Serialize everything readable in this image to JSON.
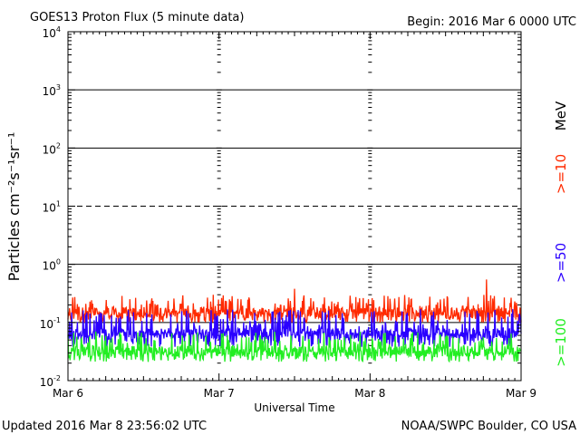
{
  "header": {
    "title": "GOES13 Proton Flux (5 minute data)",
    "begin": "Begin: 2016 Mar 6 0000 UTC"
  },
  "footer": {
    "updated": "Updated 2016 Mar  8 23:56:02 UTC",
    "source": "NOAA/SWPC Boulder, CO USA"
  },
  "chart_data": {
    "type": "line",
    "title": "GOES13 Proton Flux (5 minute data)",
    "xlabel": "Universal Time",
    "ylabel": "Particles cm⁻²s⁻¹sr⁻¹",
    "y_scale": "log",
    "ylim": [
      0.01,
      10000
    ],
    "y_ticks": [
      {
        "base": "10",
        "exp": "4"
      },
      {
        "base": "10",
        "exp": "3"
      },
      {
        "base": "10",
        "exp": "2"
      },
      {
        "base": "10",
        "exp": "1"
      },
      {
        "base": "10",
        "exp": "0"
      },
      {
        "base": "10",
        "exp": "-1"
      },
      {
        "base": "10",
        "exp": "-2"
      }
    ],
    "x_ticks": [
      "Mar 6",
      "Mar 7",
      "Mar 8",
      "Mar 9"
    ],
    "xlim_days": [
      0,
      3
    ],
    "thresholds": [
      {
        "value": 10,
        "style": "dashed"
      },
      {
        "value": 1,
        "style": "solid"
      }
    ],
    "unit_label": "MeV",
    "series": [
      {
        "name": ">=10",
        "color": "#ff2a00",
        "base": 0.15,
        "min": 0.1,
        "max": 0.3,
        "spikes": [
          {
            "x": 1.5,
            "y": 0.38
          },
          {
            "x": 2.77,
            "y": 0.55
          }
        ]
      },
      {
        "name": ">=50",
        "color": "#2a00ff",
        "base": 0.065,
        "min": 0.038,
        "max": 0.17,
        "spikes": []
      },
      {
        "name": ">=100",
        "color": "#22ee22",
        "base": 0.032,
        "min": 0.021,
        "max": 0.07,
        "spikes": []
      }
    ]
  }
}
